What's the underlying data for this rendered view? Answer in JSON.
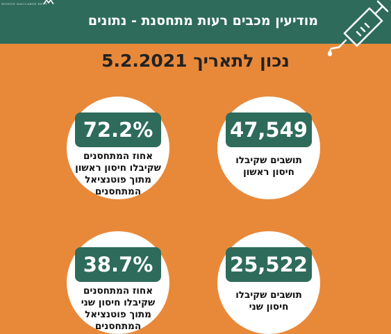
{
  "header": {
    "title": "מודיעין מכבים רעות מתחסנת - נתונים",
    "logo_text": "MODIIN MACCABIM REUT",
    "syringe_icon": "syringe-icon"
  },
  "date_line": "נכון לתאריך 5.2.2021",
  "colors": {
    "background": "#E8893A",
    "header": "#2E6B5A",
    "pill": "#2E6B5A",
    "card": "#FFFFFF"
  },
  "stats": [
    {
      "value": "47,549",
      "label_lines": [
        "תושבים שקיבלו",
        "חיסון ראשון"
      ]
    },
    {
      "value": "72.2%",
      "label_lines": [
        "אחוז המתחסנים",
        "שקיבלו חיסון ראשון",
        "מתוך פוטנציאל",
        "המתחסנים"
      ]
    },
    {
      "value": "25,522",
      "label_lines": [
        "תושבים שקיבלו",
        "חיסון שני"
      ]
    },
    {
      "value": "38.7%",
      "label_lines": [
        "אחוז המתחסנים",
        "שקיבלו חיסון שני",
        "מתוך פוטנציאל",
        "המתחסנים"
      ]
    }
  ]
}
